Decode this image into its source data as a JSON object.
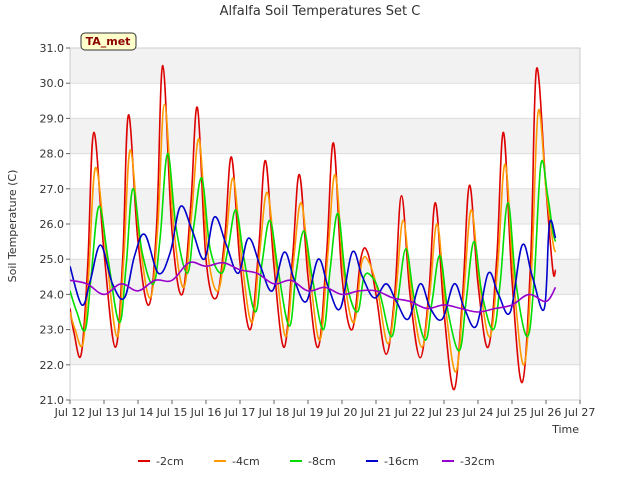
{
  "chart_data": {
    "type": "line",
    "title": "Alfalfa Soil Temperatures Set C",
    "xlabel": "Time",
    "ylabel": "Soil Temperature (C)",
    "badge": "TA_met",
    "xlim": [
      12,
      27
    ],
    "ylim": [
      21.0,
      31.0
    ],
    "x_ticks": [
      12,
      13,
      14,
      15,
      16,
      17,
      18,
      19,
      20,
      21,
      22,
      23,
      24,
      25,
      26,
      27
    ],
    "x_tick_labels": [
      "Jul 12",
      "Jul 13",
      "Jul 14",
      "Jul 15",
      "Jul 16",
      "Jul 17",
      "Jul 18",
      "Jul 19",
      "Jul 20",
      "Jul 21",
      "Jul 22",
      "Jul 23",
      "Jul 24",
      "Jul 25",
      "Jul 26",
      "Jul 27"
    ],
    "y_ticks": [
      21,
      22,
      23,
      24,
      25,
      26,
      27,
      28,
      29,
      30,
      31
    ],
    "y_tick_labels": [
      "21.0",
      "22.0",
      "23.0",
      "24.0",
      "25.0",
      "26.0",
      "27.0",
      "28.0",
      "29.0",
      "30.0",
      "31.0"
    ],
    "grid": true,
    "legend_position": "bottom",
    "series": [
      {
        "name": "-2cm",
        "color": "#dd0000",
        "x": [
          12.0,
          12.12,
          12.33,
          12.52,
          12.7,
          13.0,
          13.33,
          13.55,
          13.72,
          14.0,
          14.32,
          14.55,
          14.73,
          15.0,
          15.3,
          15.55,
          15.75,
          16.0,
          16.3,
          16.55,
          16.75,
          17.0,
          17.3,
          17.55,
          17.75,
          18.0,
          18.3,
          18.55,
          18.75,
          19.0,
          19.3,
          19.55,
          19.75,
          20.0,
          20.3,
          20.55,
          20.75,
          21.0,
          21.3,
          21.55,
          21.75,
          22.0,
          22.3,
          22.55,
          22.75,
          23.0,
          23.3,
          23.55,
          23.75,
          24.0,
          24.3,
          24.55,
          24.75,
          25.0,
          25.3,
          25.55,
          25.72,
          26.0,
          26.2,
          26.28
        ],
        "y": [
          23.6,
          22.9,
          22.3,
          24.8,
          28.6,
          25.2,
          22.5,
          25.0,
          29.1,
          25.5,
          23.7,
          26.0,
          30.5,
          25.8,
          24.0,
          26.5,
          29.3,
          25.0,
          23.9,
          25.6,
          27.9,
          24.9,
          23.0,
          25.3,
          27.8,
          24.8,
          22.5,
          25.1,
          27.4,
          24.5,
          22.5,
          25.2,
          28.3,
          24.5,
          23.0,
          25.0,
          25.2,
          24.0,
          22.3,
          24.0,
          26.8,
          24.0,
          22.2,
          24.0,
          26.6,
          23.5,
          21.3,
          24.0,
          27.1,
          24.3,
          22.5,
          25.0,
          28.6,
          24.4,
          21.5,
          25.0,
          30.4,
          27.0,
          24.7,
          24.7
        ]
      },
      {
        "name": "-4cm",
        "color": "#ff9900",
        "x": [
          12.0,
          12.15,
          12.38,
          12.55,
          12.75,
          13.05,
          13.38,
          13.58,
          13.77,
          14.05,
          14.36,
          14.58,
          14.78,
          15.05,
          15.35,
          15.58,
          15.8,
          16.05,
          16.35,
          16.58,
          16.8,
          17.05,
          17.35,
          17.58,
          17.8,
          18.05,
          18.35,
          18.58,
          18.8,
          19.05,
          19.35,
          19.58,
          19.8,
          20.05,
          20.35,
          20.58,
          20.8,
          21.05,
          21.35,
          21.58,
          21.8,
          22.05,
          22.35,
          22.58,
          22.8,
          23.05,
          23.35,
          23.58,
          23.8,
          24.05,
          24.35,
          24.58,
          24.8,
          25.05,
          25.35,
          25.58,
          25.77,
          26.0,
          26.2,
          26.28
        ],
        "y": [
          23.5,
          23.0,
          22.6,
          24.6,
          27.6,
          25.3,
          22.8,
          25.0,
          28.1,
          25.5,
          23.9,
          25.9,
          29.4,
          25.9,
          24.2,
          26.3,
          28.4,
          25.2,
          24.1,
          25.5,
          27.3,
          25.0,
          23.2,
          25.2,
          26.9,
          24.9,
          22.8,
          25.0,
          26.6,
          24.6,
          22.7,
          25.1,
          27.4,
          24.6,
          23.2,
          24.9,
          24.9,
          24.1,
          22.6,
          24.0,
          26.1,
          24.0,
          22.5,
          24.0,
          26.0,
          23.6,
          21.8,
          24.0,
          26.4,
          24.3,
          22.8,
          24.8,
          27.7,
          24.4,
          22.0,
          24.8,
          29.2,
          27.0,
          25.5,
          25.2
        ]
      },
      {
        "name": "-8cm",
        "color": "#00dd00",
        "x": [
          12.0,
          12.2,
          12.45,
          12.62,
          12.85,
          13.12,
          13.45,
          13.65,
          13.85,
          14.12,
          14.45,
          14.65,
          14.87,
          15.12,
          15.45,
          15.65,
          15.88,
          16.12,
          16.45,
          16.65,
          16.88,
          17.12,
          17.45,
          17.65,
          17.88,
          18.12,
          18.45,
          18.65,
          18.88,
          19.12,
          19.45,
          19.65,
          19.88,
          20.12,
          20.45,
          20.65,
          20.88,
          21.12,
          21.45,
          21.65,
          21.88,
          22.12,
          22.45,
          22.65,
          22.88,
          23.12,
          23.45,
          23.65,
          23.88,
          24.12,
          24.45,
          24.65,
          24.88,
          25.12,
          25.45,
          25.65,
          25.85,
          26.05,
          26.2,
          26.28
        ],
        "y": [
          24.1,
          23.5,
          23.0,
          24.5,
          26.5,
          25.0,
          23.2,
          24.8,
          27.0,
          25.2,
          24.3,
          25.6,
          28.0,
          25.9,
          24.6,
          26.0,
          27.3,
          25.3,
          24.6,
          25.3,
          26.4,
          25.0,
          23.5,
          24.9,
          26.1,
          24.7,
          23.1,
          24.6,
          25.8,
          24.5,
          23.0,
          24.7,
          26.3,
          24.4,
          23.5,
          24.5,
          24.5,
          24.0,
          22.8,
          23.9,
          25.3,
          23.9,
          22.7,
          23.8,
          25.1,
          23.5,
          22.4,
          23.8,
          25.5,
          24.0,
          23.0,
          24.3,
          26.6,
          24.3,
          22.8,
          24.4,
          27.7,
          26.8,
          25.8,
          25.5
        ]
      },
      {
        "name": "-16cm",
        "color": "#0000cc",
        "x": [
          12.0,
          12.35,
          12.6,
          12.9,
          13.25,
          13.6,
          13.9,
          14.2,
          14.6,
          14.95,
          15.25,
          15.6,
          15.95,
          16.25,
          16.6,
          16.95,
          17.25,
          17.6,
          17.95,
          18.3,
          18.6,
          18.95,
          19.3,
          19.6,
          19.95,
          20.3,
          20.6,
          20.95,
          21.3,
          21.6,
          21.95,
          22.3,
          22.6,
          22.95,
          23.3,
          23.6,
          23.95,
          24.3,
          24.6,
          24.95,
          25.3,
          25.6,
          25.95,
          26.1,
          26.28
        ],
        "y": [
          24.8,
          23.7,
          24.4,
          25.4,
          24.3,
          23.9,
          25.1,
          25.7,
          24.6,
          25.2,
          26.5,
          25.8,
          25.0,
          26.2,
          25.4,
          24.6,
          25.6,
          24.8,
          24.1,
          25.2,
          24.4,
          23.8,
          25.0,
          24.2,
          23.6,
          25.2,
          24.5,
          23.9,
          24.3,
          23.8,
          23.3,
          24.3,
          23.6,
          23.3,
          24.3,
          23.6,
          23.1,
          24.6,
          24.0,
          23.5,
          25.4,
          24.5,
          23.6,
          26.0,
          25.6
        ]
      },
      {
        "name": "-32cm",
        "color": "#9900cc",
        "x": [
          12.0,
          12.5,
          13.0,
          13.5,
          14.0,
          14.5,
          15.0,
          15.5,
          16.0,
          16.5,
          17.0,
          17.5,
          18.0,
          18.5,
          19.0,
          19.5,
          20.0,
          20.5,
          21.0,
          21.5,
          22.0,
          22.5,
          23.0,
          23.5,
          24.0,
          24.5,
          25.0,
          25.5,
          26.0,
          26.28
        ],
        "y": [
          24.4,
          24.3,
          24.0,
          24.3,
          24.1,
          24.4,
          24.4,
          24.9,
          24.8,
          24.9,
          24.7,
          24.6,
          24.3,
          24.4,
          24.1,
          24.2,
          24.0,
          24.1,
          24.1,
          23.9,
          23.8,
          23.6,
          23.7,
          23.6,
          23.5,
          23.6,
          23.7,
          24.0,
          23.8,
          24.2
        ]
      }
    ]
  }
}
